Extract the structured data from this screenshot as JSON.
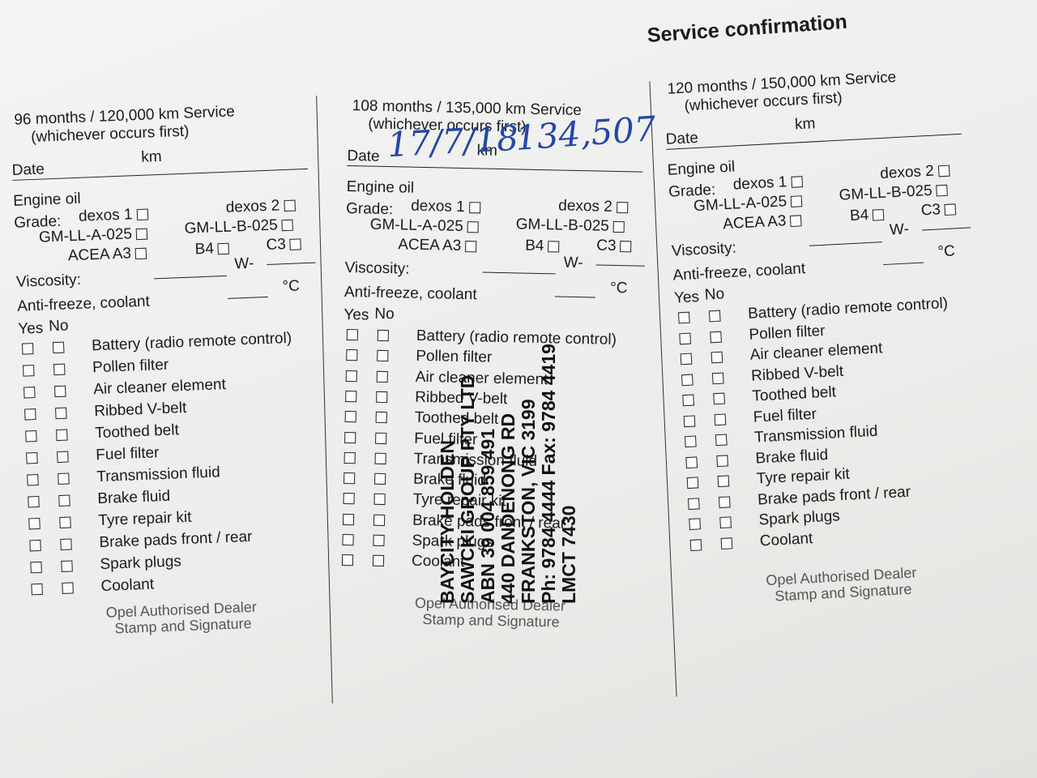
{
  "title": "Service confirmation",
  "columns": [
    {
      "heading": "96 months / 120,000 km Service",
      "subheading": "(whichever occurs first)",
      "date_label": "Date",
      "km_label": "km",
      "engine_oil": "Engine oil",
      "grade_label": "Grade:",
      "grades": [
        "dexos 1",
        "dexos 2",
        "GM-LL-A-025",
        "GM-LL-B-025",
        "ACEA A3",
        "B4",
        "C3"
      ],
      "viscosity": "Viscosity:",
      "w": "W-",
      "antifreeze": "Anti-freeze, coolant",
      "celsius": "°C",
      "yes": "Yes",
      "no": "No",
      "items": [
        "Battery (radio remote control)",
        "Pollen filter",
        "Air cleaner element",
        "Ribbed V-belt",
        "Toothed belt",
        "Fuel filter",
        "Transmission fluid",
        "Brake fluid",
        "Tyre repair kit",
        "Brake pads front / rear",
        "Spark plugs",
        "Coolant"
      ],
      "dealer": [
        "Opel Authorised Dealer",
        "Stamp and Signature"
      ]
    },
    {
      "heading": "108 months / 135,000 km Service",
      "subheading": "(whichever occurs first)",
      "date_label": "Date",
      "km_label": "km",
      "engine_oil": "Engine oil",
      "grade_label": "Grade:",
      "grades": [
        "dexos 1",
        "dexos 2",
        "GM-LL-A-025",
        "GM-LL-B-025",
        "ACEA A3",
        "B4",
        "C3"
      ],
      "viscosity": "Viscosity:",
      "w": "W-",
      "antifreeze": "Anti-freeze, coolant",
      "celsius": "°C",
      "yes": "Yes",
      "no": "No",
      "items": [
        "Battery (radio remote control)",
        "Pollen filter",
        "Air cleaner element",
        "Ribbed V-belt",
        "Toothed belt",
        "Fuel filter",
        "Transmission fluid",
        "Brake fluid",
        "Tyre repair kit",
        "Brake pads front / rear",
        "Spark plugs",
        "Coolant"
      ],
      "dealer": [
        "Opel Authorised Dealer",
        "Stamp and Signature"
      ]
    },
    {
      "heading": "120 months / 150,000 km Service",
      "subheading": "(whichever occurs first)",
      "date_label": "Date",
      "km_label": "km",
      "engine_oil": "Engine oil",
      "grade_label": "Grade:",
      "grades": [
        "dexos 1",
        "dexos 2",
        "GM-LL-A-025",
        "GM-LL-B-025",
        "ACEA A3",
        "B4",
        "C3"
      ],
      "viscosity": "Viscosity:",
      "w": "W-",
      "antifreeze": "Anti-freeze, coolant",
      "celsius": "°C",
      "yes": "Yes",
      "no": "No",
      "items": [
        "Battery (radio remote control)",
        "Pollen filter",
        "Air cleaner element",
        "Ribbed V-belt",
        "Toothed belt",
        "Fuel filter",
        "Transmission fluid",
        "Brake fluid",
        "Tyre repair kit",
        "Brake pads front / rear",
        "Spark plugs",
        "Coolant"
      ],
      "dealer": [
        "Opel Authorised Dealer",
        "Stamp and Signature"
      ]
    }
  ],
  "handwriting": {
    "date": "17/7/18",
    "km": "134,507"
  },
  "stamp": [
    "BAYCITY HOLDEN",
    "SAWCKI GROUP PTY LTD",
    "ABN 39 004 859 491",
    "440 DANDENONG RD",
    "FRANKSTON, VIC 3199",
    "Ph: 9784 4444 Fax: 9784 4419",
    "LMCT 7430"
  ]
}
